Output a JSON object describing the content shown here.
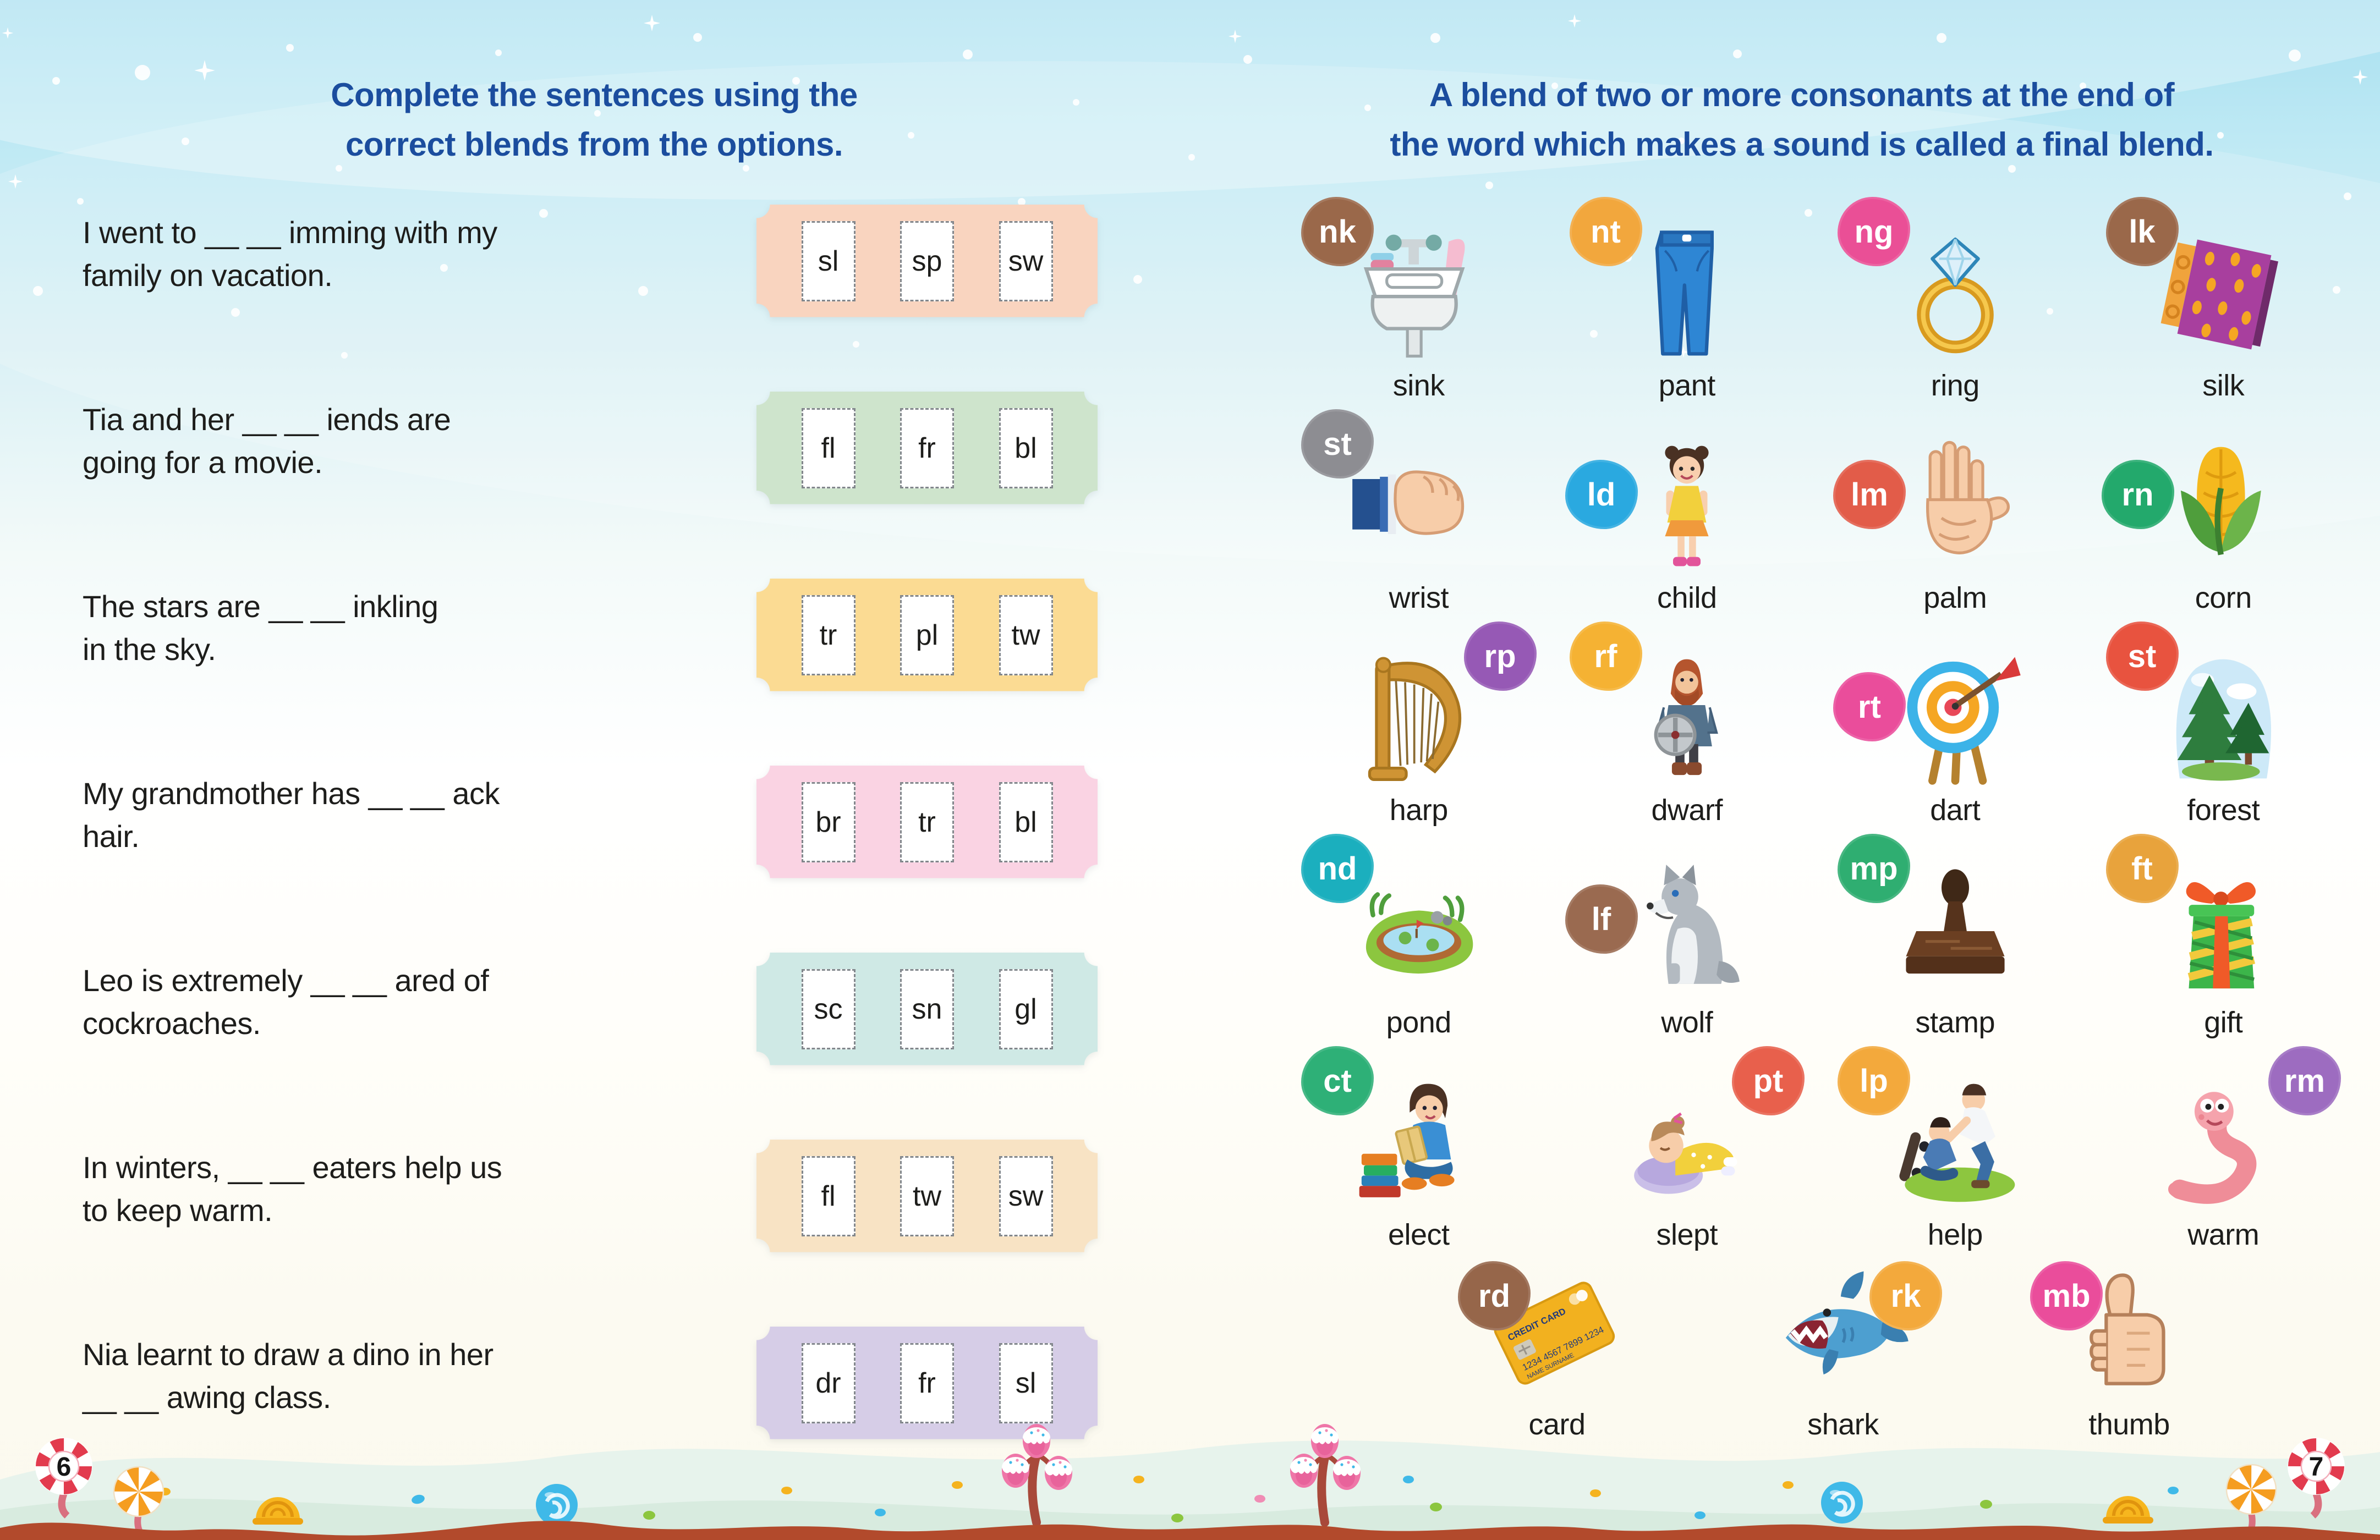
{
  "left_page": {
    "title_line1": "Complete the sentences using the",
    "title_line2": "correct blends from the options.",
    "title_color": "#1b4d9e",
    "page_number": "6",
    "sentences": [
      {
        "line1": "I went to __ __ imming with my",
        "line2": "family on vacation.",
        "options": [
          "sl",
          "sp",
          "sw"
        ],
        "card_color": "#f9d4bf"
      },
      {
        "line1": "Tia and her __ __ iends are",
        "line2": "going for a movie.",
        "options": [
          "fl",
          "fr",
          "bl"
        ],
        "card_color": "#cee4cc"
      },
      {
        "line1": "The stars are __ __ inkling",
        "line2": "in the sky.",
        "options": [
          "tr",
          "pl",
          "tw"
        ],
        "card_color": "#fbdb93"
      },
      {
        "line1": "My grandmother has __ __ ack",
        "line2": "hair.",
        "options": [
          "br",
          "tr",
          "bl"
        ],
        "card_color": "#fad3e3"
      },
      {
        "line1": "Leo is extremely __ __ ared of",
        "line2": "cockroaches.",
        "options": [
          "sc",
          "sn",
          "gl"
        ],
        "card_color": "#cfe9e5"
      },
      {
        "line1": "In winters, __ __ eaters help us",
        "line2": "to keep warm.",
        "options": [
          "fl",
          "tw",
          "sw"
        ],
        "card_color": "#f8e3c4"
      },
      {
        "line1": "Nia learnt to draw a dino in her",
        "line2": "__ __ awing class.",
        "options": [
          "dr",
          "fr",
          "sl"
        ],
        "card_color": "#d6cde7"
      }
    ]
  },
  "right_page": {
    "title_line1": "A blend of two or more consonants at the end of",
    "title_line2": "the word which makes a sound is called a final blend.",
    "title_color": "#1b4d9e",
    "page_number": "7",
    "items": [
      {
        "blend": "nk",
        "word": "sink",
        "badge_color": "#9a684a"
      },
      {
        "blend": "nt",
        "word": "pant",
        "badge_color": "#f2a73d"
      },
      {
        "blend": "ng",
        "word": "ring",
        "badge_color": "#ea4f96"
      },
      {
        "blend": "lk",
        "word": "silk",
        "badge_color": "#9a684a"
      },
      {
        "blend": "st",
        "word": "wrist",
        "badge_color": "#8d8d92"
      },
      {
        "blend": "ld",
        "word": "child",
        "badge_color": "#2aa9e0"
      },
      {
        "blend": "lm",
        "word": "palm",
        "badge_color": "#e25c49"
      },
      {
        "blend": "rn",
        "word": "corn",
        "badge_color": "#23a96c"
      },
      {
        "blend": "rp",
        "word": "harp",
        "badge_color": "#9659b5"
      },
      {
        "blend": "rf",
        "word": "dwarf",
        "badge_color": "#f5b233"
      },
      {
        "blend": "rt",
        "word": "dart",
        "badge_color": "#ea4d9b"
      },
      {
        "blend": "st",
        "word": "forest",
        "badge_color": "#e8533f"
      },
      {
        "blend": "nd",
        "word": "pond",
        "badge_color": "#1bafbe"
      },
      {
        "blend": "lf",
        "word": "wolf",
        "badge_color": "#9a6a50"
      },
      {
        "blend": "mp",
        "word": "stamp",
        "badge_color": "#2fae71"
      },
      {
        "blend": "ft",
        "word": "gift",
        "badge_color": "#e8a33c"
      },
      {
        "blend": "ct",
        "word": "elect",
        "badge_color": "#2eb077"
      },
      {
        "blend": "pt",
        "word": "slept",
        "badge_color": "#e8604c"
      },
      {
        "blend": "lp",
        "word": "help",
        "badge_color": "#f3a93c"
      },
      {
        "blend": "rm",
        "word": "warm",
        "badge_color": "#9d6cc0"
      },
      {
        "blend": "rd",
        "word": "card",
        "badge_color": "#96664a"
      },
      {
        "blend": "rk",
        "word": "shark",
        "badge_color": "#f3a93c"
      },
      {
        "blend": "mb",
        "word": "thumb",
        "badge_color": "#ea4d9b"
      }
    ]
  },
  "card_detail": {
    "label": "CREDIT CARD",
    "number": "1234 4567 7899 1234",
    "name": "NAME SURNAME"
  }
}
